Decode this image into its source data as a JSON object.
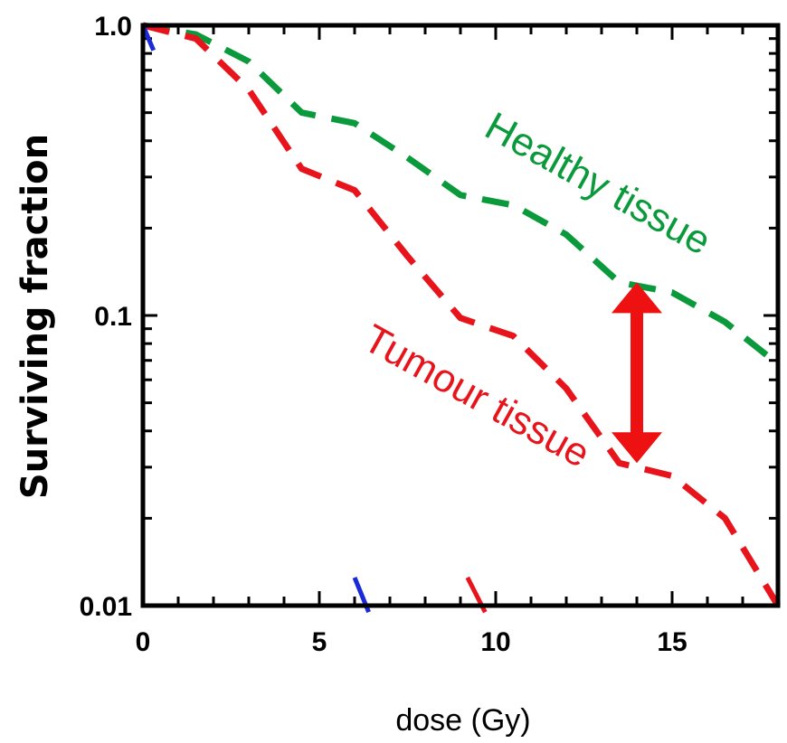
{
  "chart_data": {
    "type": "line",
    "xlabel": "dose (Gy)",
    "ylabel": "Surviving fraction",
    "xlim": [
      0,
      18
    ],
    "ylim": [
      0.01,
      1.0
    ],
    "yscale": "log",
    "x_ticks": [
      "0",
      "5",
      "10",
      "15"
    ],
    "y_ticks": [
      "0.01",
      "0.1",
      "1.0"
    ],
    "grid": false,
    "series": [
      {
        "name": "Healthy tissue",
        "color": "#0a9a3c",
        "style": "dashed",
        "x": [
          0,
          1.5,
          3,
          4.5,
          6,
          7.5,
          9,
          10.5,
          12,
          13.5,
          15,
          16.5,
          18
        ],
        "y": [
          1.0,
          0.93,
          0.75,
          0.5,
          0.46,
          0.35,
          0.26,
          0.24,
          0.19,
          0.13,
          0.12,
          0.095,
          0.068
        ]
      },
      {
        "name": "Tumour tissue",
        "color": "#e8141c",
        "style": "dashed",
        "x": [
          0,
          1.5,
          3,
          4.5,
          6,
          7.5,
          9,
          10.5,
          12,
          13.5,
          15,
          16.5,
          18
        ],
        "y": [
          1.0,
          0.9,
          0.6,
          0.32,
          0.27,
          0.16,
          0.098,
          0.085,
          0.056,
          0.031,
          0.028,
          0.02,
          0.01
        ]
      },
      {
        "color": "#1a2ad8",
        "style": "solid",
        "x": [
          0,
          0.3
        ],
        "y": [
          1.0,
          0.82
        ]
      },
      {
        "color": "#1a2ad8",
        "style": "solid",
        "x": [
          6.0,
          6.4
        ],
        "y": [
          0.0125,
          0.0095
        ]
      },
      {
        "color": "#e8141c",
        "style": "solid",
        "x": [
          9.2,
          9.7
        ],
        "y": [
          0.0125,
          0.0095
        ]
      }
    ],
    "annotations": [
      {
        "text": "Healthy tissue",
        "color": "#0a9a3c"
      },
      {
        "text": "Tumour tissue",
        "color": "#e8141c"
      }
    ],
    "arrow": {
      "x": 14.0,
      "y_top": 0.13,
      "y_bottom": 0.031,
      "color": "#ee1111",
      "direction": "double"
    }
  }
}
